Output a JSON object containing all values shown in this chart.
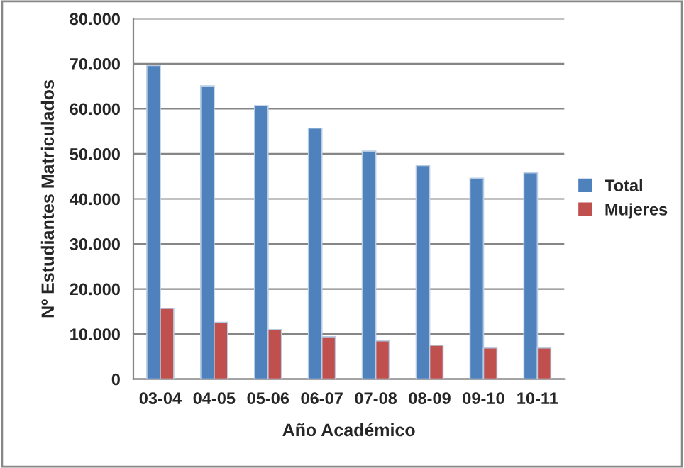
{
  "chart_data": {
    "type": "bar",
    "xlabel": "Año Académico",
    "ylabel": "Nº Estudiantes Matriculados",
    "categories": [
      "03-04",
      "04-05",
      "05-06",
      "06-07",
      "07-08",
      "08-09",
      "09-10",
      "10-11"
    ],
    "series": [
      {
        "name": "Total",
        "color": "#4f81bd",
        "values": [
          69600,
          65100,
          60700,
          55700,
          50600,
          47400,
          44600,
          45800
        ]
      },
      {
        "name": "Mujeres",
        "color": "#c0504d",
        "values": [
          15700,
          12600,
          11000,
          9400,
          8500,
          7500,
          6900,
          6900
        ]
      }
    ],
    "ylim": [
      0,
      80000
    ],
    "yticks": [
      0,
      {
        "value": 10000,
        "label": "10.000"
      },
      {
        "value": 20000,
        "label": "20.000"
      },
      {
        "value": 30000,
        "label": "30.000"
      },
      {
        "value": 40000,
        "label": "40.000"
      },
      {
        "value": 50000,
        "label": "50.000"
      },
      {
        "value": 60000,
        "label": "60.000"
      },
      {
        "value": 70000,
        "label": "70.000"
      },
      {
        "value": 80000,
        "label": "80.000"
      }
    ],
    "grid": "y",
    "legend": "right"
  }
}
